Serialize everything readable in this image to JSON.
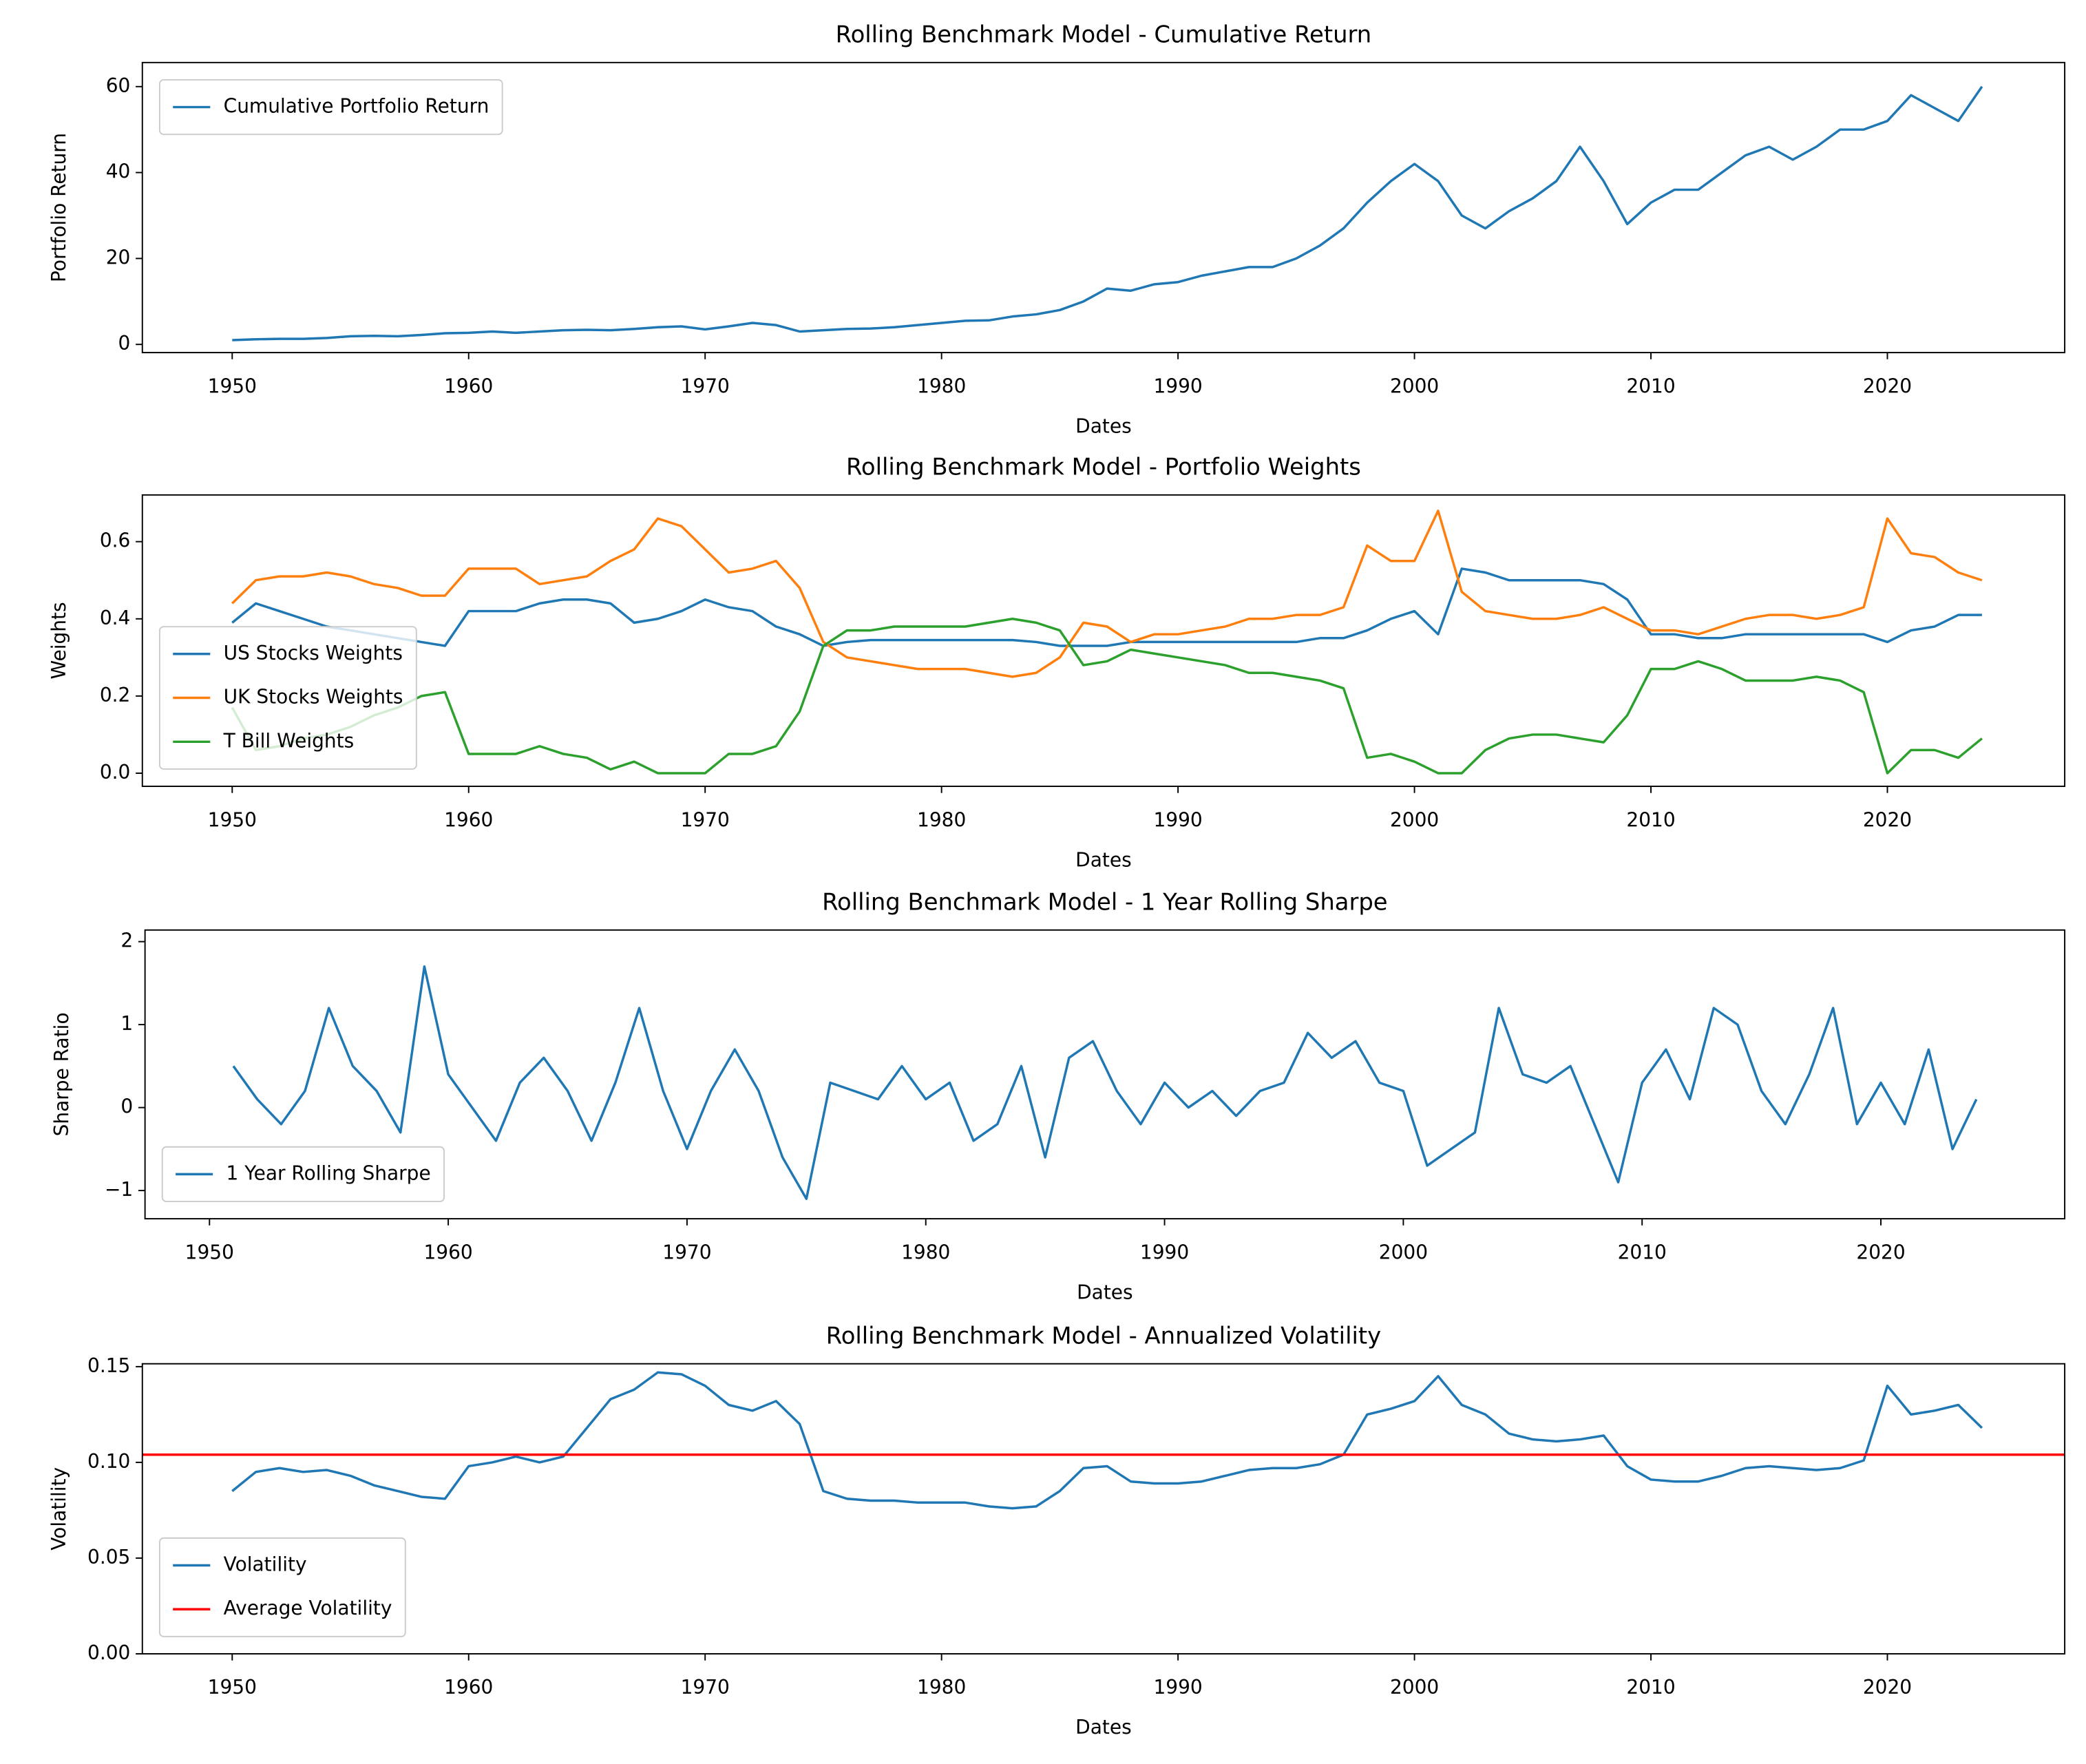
{
  "chart_data": [
    {
      "type": "line",
      "title": "Rolling Benchmark Model - Cumulative Return",
      "xlabel": "Dates",
      "ylabel": "Portfolio Return",
      "legend": "upper left",
      "x": [
        1950,
        1951,
        1952,
        1953,
        1954,
        1955,
        1956,
        1957,
        1958,
        1959,
        1960,
        1961,
        1962,
        1963,
        1964,
        1965,
        1966,
        1967,
        1968,
        1969,
        1970,
        1971,
        1972,
        1973,
        1974,
        1975,
        1976,
        1977,
        1978,
        1979,
        1980,
        1981,
        1982,
        1983,
        1984,
        1985,
        1986,
        1987,
        1988,
        1989,
        1990,
        1991,
        1992,
        1993,
        1994,
        1995,
        1996,
        1997,
        1998,
        1999,
        2000,
        2001,
        2002,
        2003,
        2004,
        2005,
        2006,
        2007,
        2008,
        2009,
        2010,
        2011,
        2012,
        2013,
        2014,
        2015,
        2016,
        2017,
        2018,
        2019,
        2020,
        2021,
        2022,
        2023,
        2024
      ],
      "series": [
        {
          "name": "Cumulative Portfolio Return",
          "color": "#1f77b4",
          "values": [
            1.0,
            1.2,
            1.3,
            1.3,
            1.5,
            1.9,
            2.0,
            1.9,
            2.2,
            2.6,
            2.7,
            3.0,
            2.7,
            3.0,
            3.3,
            3.4,
            3.3,
            3.6,
            4.0,
            4.2,
            3.5,
            4.2,
            5.0,
            4.5,
            3.0,
            3.3,
            3.6,
            3.7,
            4.0,
            4.5,
            5.0,
            5.5,
            5.6,
            6.5,
            7.0,
            8.0,
            10,
            13,
            12.5,
            14,
            14.5,
            16,
            17,
            18,
            18,
            20,
            23,
            27,
            33,
            38,
            42,
            38,
            30,
            27,
            31,
            34,
            38,
            46,
            38,
            28,
            33,
            36,
            36,
            40,
            44,
            46,
            43,
            46,
            50,
            50,
            52,
            58,
            55,
            52,
            60
          ]
        }
      ],
      "xlim": [
        1946.2,
        2027.5
      ],
      "xticks": [
        1950,
        1960,
        1970,
        1980,
        1990,
        2000,
        2010,
        2020
      ],
      "ylim": [
        -1.9,
        65.6
      ],
      "yticks": [
        0,
        20,
        40,
        60
      ]
    },
    {
      "type": "line",
      "title": "Rolling Benchmark Model - Portfolio Weights",
      "xlabel": "Dates",
      "ylabel": "Weights",
      "legend": "lower left",
      "x": [
        1950,
        1951,
        1952,
        1953,
        1954,
        1955,
        1956,
        1957,
        1958,
        1959,
        1960,
        1961,
        1962,
        1963,
        1964,
        1965,
        1966,
        1967,
        1968,
        1969,
        1970,
        1971,
        1972,
        1973,
        1974,
        1975,
        1976,
        1977,
        1978,
        1979,
        1980,
        1981,
        1982,
        1983,
        1984,
        1985,
        1986,
        1987,
        1988,
        1989,
        1990,
        1991,
        1992,
        1993,
        1994,
        1995,
        1996,
        1997,
        1998,
        1999,
        2000,
        2001,
        2002,
        2003,
        2004,
        2005,
        2006,
        2007,
        2008,
        2009,
        2010,
        2011,
        2012,
        2013,
        2014,
        2015,
        2016,
        2017,
        2018,
        2019,
        2020,
        2021,
        2022,
        2023,
        2024
      ],
      "series": [
        {
          "name": "US Stocks Weights",
          "color": "#1f77b4",
          "values": [
            0.39,
            0.44,
            0.42,
            0.4,
            0.38,
            0.37,
            0.36,
            0.35,
            0.34,
            0.33,
            0.42,
            0.42,
            0.42,
            0.44,
            0.45,
            0.45,
            0.44,
            0.39,
            0.4,
            0.42,
            0.45,
            0.43,
            0.42,
            0.38,
            0.36,
            0.33,
            0.34,
            0.345,
            0.345,
            0.345,
            0.345,
            0.345,
            0.345,
            0.345,
            0.34,
            0.33,
            0.33,
            0.33,
            0.34,
            0.34,
            0.34,
            0.34,
            0.34,
            0.34,
            0.34,
            0.34,
            0.35,
            0.35,
            0.37,
            0.4,
            0.42,
            0.36,
            0.53,
            0.52,
            0.5,
            0.5,
            0.5,
            0.5,
            0.49,
            0.45,
            0.36,
            0.36,
            0.35,
            0.35,
            0.36,
            0.36,
            0.36,
            0.36,
            0.36,
            0.36,
            0.34,
            0.37,
            0.38,
            0.41,
            0.41
          ]
        },
        {
          "name": "UK Stocks Weights",
          "color": "#ff7f0e",
          "values": [
            0.44,
            0.5,
            0.51,
            0.51,
            0.52,
            0.51,
            0.49,
            0.48,
            0.46,
            0.46,
            0.53,
            0.53,
            0.53,
            0.49,
            0.5,
            0.51,
            0.55,
            0.58,
            0.66,
            0.64,
            0.58,
            0.52,
            0.53,
            0.55,
            0.48,
            0.34,
            0.3,
            0.29,
            0.28,
            0.27,
            0.27,
            0.27,
            0.26,
            0.25,
            0.26,
            0.3,
            0.39,
            0.38,
            0.34,
            0.36,
            0.36,
            0.37,
            0.38,
            0.4,
            0.4,
            0.41,
            0.41,
            0.43,
            0.59,
            0.55,
            0.55,
            0.68,
            0.47,
            0.42,
            0.41,
            0.4,
            0.4,
            0.41,
            0.43,
            0.4,
            0.37,
            0.37,
            0.36,
            0.38,
            0.4,
            0.41,
            0.41,
            0.4,
            0.41,
            0.43,
            0.66,
            0.57,
            0.56,
            0.52,
            0.5
          ]
        },
        {
          "name": "T Bill Weights",
          "color": "#2ca02c",
          "values": [
            0.17,
            0.06,
            0.07,
            0.09,
            0.1,
            0.12,
            0.15,
            0.17,
            0.2,
            0.21,
            0.05,
            0.05,
            0.05,
            0.07,
            0.05,
            0.04,
            0.01,
            0.03,
            0.0,
            0.0,
            0.0,
            0.05,
            0.05,
            0.07,
            0.16,
            0.33,
            0.37,
            0.37,
            0.38,
            0.38,
            0.38,
            0.38,
            0.39,
            0.4,
            0.39,
            0.37,
            0.28,
            0.29,
            0.32,
            0.31,
            0.3,
            0.29,
            0.28,
            0.26,
            0.26,
            0.25,
            0.24,
            0.22,
            0.04,
            0.05,
            0.03,
            0.0,
            0.0,
            0.06,
            0.09,
            0.1,
            0.1,
            0.09,
            0.08,
            0.15,
            0.27,
            0.27,
            0.29,
            0.27,
            0.24,
            0.24,
            0.24,
            0.25,
            0.24,
            0.21,
            0.0,
            0.06,
            0.06,
            0.04,
            0.09
          ]
        }
      ],
      "xlim": [
        1946.2,
        2027.5
      ],
      "xticks": [
        1950,
        1960,
        1970,
        1980,
        1990,
        2000,
        2010,
        2020
      ],
      "ylim": [
        -0.034,
        0.721
      ],
      "yticks": [
        {
          "value": 0,
          "label": "0.0"
        },
        0.2,
        0.4,
        0.6
      ]
    },
    {
      "type": "line",
      "title": "Rolling Benchmark Model - 1 Year Rolling Sharpe",
      "xlabel": "Dates",
      "ylabel": "Sharpe Ratio",
      "legend": "lower left",
      "x": [
        1951,
        1952,
        1953,
        1954,
        1955,
        1956,
        1957,
        1958,
        1959,
        1960,
        1961,
        1962,
        1963,
        1964,
        1965,
        1966,
        1967,
        1968,
        1969,
        1970,
        1971,
        1972,
        1973,
        1974,
        1975,
        1976,
        1977,
        1978,
        1979,
        1980,
        1981,
        1982,
        1983,
        1984,
        1985,
        1986,
        1987,
        1988,
        1989,
        1990,
        1991,
        1992,
        1993,
        1994,
        1995,
        1996,
        1997,
        1998,
        1999,
        2000,
        2001,
        2002,
        2003,
        2004,
        2005,
        2006,
        2007,
        2008,
        2009,
        2010,
        2011,
        2012,
        2013,
        2014,
        2015,
        2016,
        2017,
        2018,
        2019,
        2020,
        2021,
        2022,
        2023,
        2024
      ],
      "series": [
        {
          "name": "1 Year Rolling Sharpe",
          "color": "#1f77b4",
          "values": [
            0.5,
            0.1,
            -0.2,
            0.2,
            1.2,
            0.5,
            0.2,
            -0.3,
            1.7,
            0.4,
            0.0,
            -0.4,
            0.3,
            0.6,
            0.2,
            -0.4,
            0.3,
            1.2,
            0.2,
            -0.5,
            0.2,
            0.7,
            0.2,
            -0.6,
            -1.1,
            0.3,
            0.2,
            0.1,
            0.5,
            0.1,
            0.3,
            -0.4,
            -0.2,
            0.5,
            -0.6,
            0.6,
            0.8,
            0.2,
            -0.2,
            0.3,
            0.0,
            0.2,
            -0.1,
            0.2,
            0.3,
            0.9,
            0.6,
            0.8,
            0.3,
            0.2,
            -0.7,
            -0.5,
            -0.3,
            1.2,
            0.4,
            0.3,
            0.5,
            -0.2,
            -0.9,
            0.3,
            0.7,
            0.1,
            1.2,
            1.0,
            0.2,
            -0.2,
            0.4,
            1.2,
            -0.2,
            0.3,
            -0.2,
            0.7,
            -0.5,
            0.1
          ]
        }
      ],
      "xlim": [
        1947.3,
        2027.7
      ],
      "xticks": [
        1950,
        1960,
        1970,
        1980,
        1990,
        2000,
        2010,
        2020
      ],
      "ylim": [
        -1.34,
        2.14
      ],
      "yticks": [
        {
          "value": -1,
          "label": "−1"
        },
        0,
        1,
        2
      ]
    },
    {
      "type": "line",
      "title": "Rolling Benchmark Model - Annualized Volatility",
      "xlabel": "Dates",
      "ylabel": "Volatility",
      "legend": "lower left",
      "x": [
        1950,
        1951,
        1952,
        1953,
        1954,
        1955,
        1956,
        1957,
        1958,
        1959,
        1960,
        1961,
        1962,
        1963,
        1964,
        1965,
        1966,
        1967,
        1968,
        1969,
        1970,
        1971,
        1972,
        1973,
        1974,
        1975,
        1976,
        1977,
        1978,
        1979,
        1980,
        1981,
        1982,
        1983,
        1984,
        1985,
        1986,
        1987,
        1988,
        1989,
        1990,
        1991,
        1992,
        1993,
        1994,
        1995,
        1996,
        1997,
        1998,
        1999,
        2000,
        2001,
        2002,
        2003,
        2004,
        2005,
        2006,
        2007,
        2008,
        2009,
        2010,
        2011,
        2012,
        2013,
        2014,
        2015,
        2016,
        2017,
        2018,
        2019,
        2020,
        2021,
        2022,
        2023,
        2024
      ],
      "series": [
        {
          "name": "Volatility",
          "color": "#1f77b4",
          "values": [
            0.085,
            0.095,
            0.097,
            0.095,
            0.096,
            0.093,
            0.088,
            0.085,
            0.082,
            0.081,
            0.098,
            0.1,
            0.103,
            0.1,
            0.103,
            0.118,
            0.133,
            0.138,
            0.147,
            0.146,
            0.14,
            0.13,
            0.127,
            0.132,
            0.12,
            0.085,
            0.081,
            0.08,
            0.08,
            0.079,
            0.079,
            0.079,
            0.077,
            0.076,
            0.077,
            0.085,
            0.097,
            0.098,
            0.09,
            0.089,
            0.089,
            0.09,
            0.093,
            0.096,
            0.097,
            0.097,
            0.099,
            0.104,
            0.125,
            0.128,
            0.132,
            0.145,
            0.13,
            0.125,
            0.115,
            0.112,
            0.111,
            0.112,
            0.114,
            0.098,
            0.091,
            0.09,
            0.09,
            0.093,
            0.097,
            0.098,
            0.097,
            0.096,
            0.097,
            0.101,
            0.14,
            0.125,
            0.127,
            0.13,
            0.118
          ]
        }
      ],
      "hlines": [
        {
          "name": "Average Volatility",
          "color": "#ff0000",
          "value": 0.104
        }
      ],
      "xlim": [
        1946.2,
        2027.5
      ],
      "xticks": [
        1950,
        1960,
        1970,
        1980,
        1990,
        2000,
        2010,
        2020
      ],
      "ylim": [
        0,
        0.1515
      ],
      "yticks": [
        {
          "value": 0,
          "label": "0.00"
        },
        0.05,
        {
          "value": 0.1,
          "label": "0.10"
        },
        0.15
      ]
    }
  ]
}
